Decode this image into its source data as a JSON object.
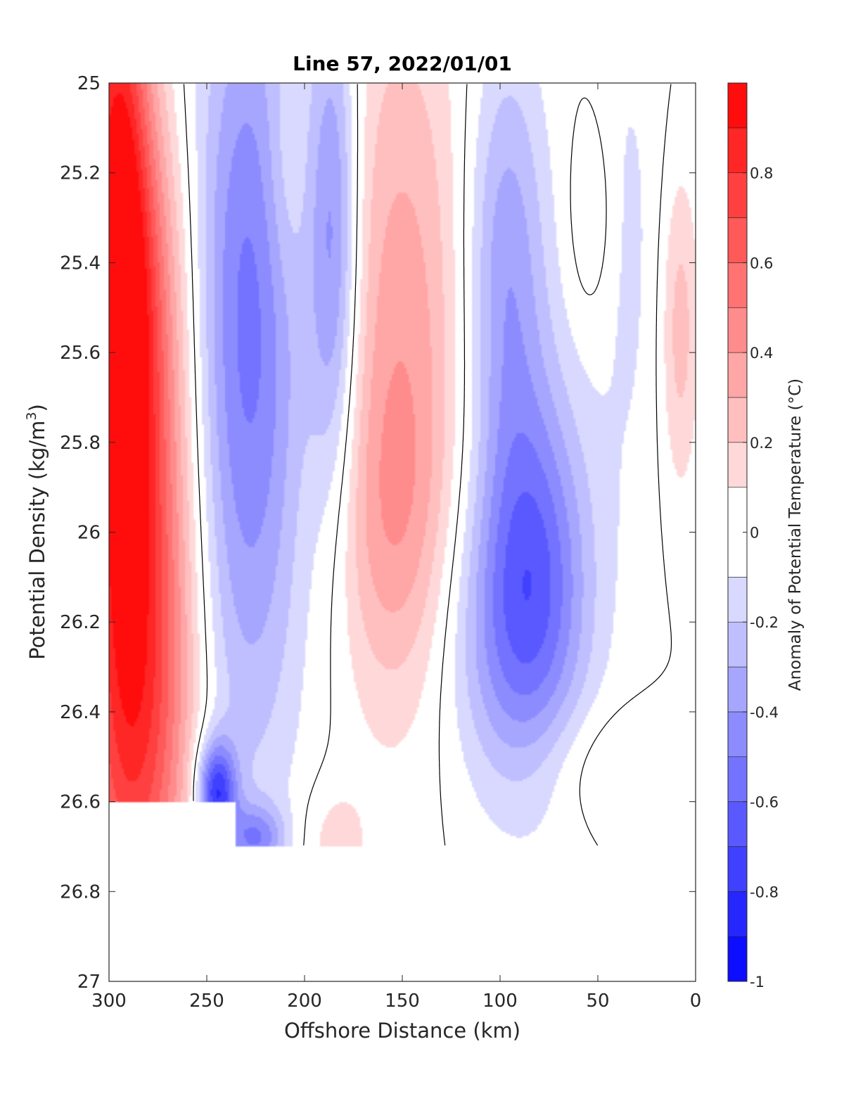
{
  "chart_data": {
    "type": "heatmap",
    "title": "Line 57, 2022/01/01",
    "xlabel": "Offshore Distance (km)",
    "ylabel": "Potential Density (kg/m3)",
    "ylabel_base": "Potential Density (kg/m",
    "ylabel_sup": "3",
    "ylabel_tail": ")",
    "xlim": [
      300,
      0
    ],
    "ylim": [
      25,
      27
    ],
    "x_reversed": true,
    "y_reversed": true,
    "xticks": [
      300,
      250,
      200,
      150,
      100,
      50,
      0
    ],
    "xtick_labels": [
      "300",
      "250",
      "200",
      "150",
      "100",
      "50",
      "0"
    ],
    "yticks": [
      25,
      25.2,
      25.4,
      25.6,
      25.8,
      26,
      26.2,
      26.4,
      26.6,
      26.8,
      27
    ],
    "ytick_labels": [
      "25",
      "25.2",
      "25.4",
      "25.6",
      "25.8",
      "26",
      "26.2",
      "26.4",
      "26.6",
      "26.8",
      "27"
    ],
    "grid": false,
    "zero_contour": true,
    "colorbar": {
      "label": "Anomaly of Potential Temperature (°C)",
      "range": [
        -1,
        1
      ],
      "levels": [
        -1,
        -0.9,
        -0.8,
        -0.7,
        -0.6,
        -0.5,
        -0.4,
        -0.3,
        -0.2,
        -0.1,
        0.1,
        0.2,
        0.3,
        0.4,
        0.5,
        0.6,
        0.7,
        0.8,
        0.9,
        1
      ],
      "ticks": [
        -1,
        -0.8,
        -0.6,
        -0.4,
        -0.2,
        0,
        0.2,
        0.4,
        0.6,
        0.8
      ],
      "tick_labels": [
        "-1",
        "-0.8",
        "-0.6",
        "-0.4",
        "-0.2",
        "0",
        "0.2",
        "0.4",
        "0.6",
        "0.8"
      ],
      "colormap": "blue-white-red",
      "low_color": "#0000ff",
      "mid_color": "#ffffff",
      "high_color": "#ff0000"
    },
    "data_coverage": [
      {
        "x_range": [
          300,
          262
        ],
        "max_density": 26.6
      },
      {
        "x_range": [
          262,
          235
        ],
        "max_density": 26.6
      },
      {
        "x_range": [
          235,
          125
        ],
        "max_density": 26.7
      },
      {
        "x_range": [
          125,
          100
        ],
        "max_density": 26.8
      },
      {
        "x_range": [
          100,
          30
        ],
        "max_density": 26.7
      }
    ],
    "anomaly_features": [
      {
        "center": [
          296,
          25.35
        ],
        "spread": [
          12,
          0.55
        ],
        "value": 0.95
      },
      {
        "center": [
          280,
          25.5
        ],
        "spread": [
          16,
          0.35
        ],
        "value": 0.4
      },
      {
        "center": [
          288,
          26.45
        ],
        "spread": [
          20,
          0.45
        ],
        "value": 0.65
      },
      {
        "center": [
          275,
          26.1
        ],
        "spread": [
          18,
          0.4
        ],
        "value": 0.25
      },
      {
        "center": [
          245,
          26.58
        ],
        "spread": [
          7,
          0.08
        ],
        "value": -0.75
      },
      {
        "center": [
          228,
          25.3
        ],
        "spread": [
          20,
          0.5
        ],
        "value": -0.35
      },
      {
        "center": [
          230,
          25.95
        ],
        "spread": [
          22,
          0.55
        ],
        "value": -0.3
      },
      {
        "center": [
          210,
          25.2
        ],
        "spread": [
          8,
          0.2
        ],
        "value": 0.12
      },
      {
        "center": [
          185,
          25.35
        ],
        "spread": [
          9,
          0.4
        ],
        "value": -0.45
      },
      {
        "center": [
          150,
          25.55
        ],
        "spread": [
          24,
          0.55
        ],
        "value": 0.35
      },
      {
        "center": [
          155,
          26.0
        ],
        "spread": [
          20,
          0.25
        ],
        "value": 0.18
      },
      {
        "center": [
          97,
          25.4
        ],
        "spread": [
          15,
          0.35
        ],
        "value": -0.38
      },
      {
        "center": [
          82,
          26.05
        ],
        "spread": [
          20,
          0.3
        ],
        "value": -0.45
      },
      {
        "center": [
          95,
          26.25
        ],
        "spread": [
          25,
          0.25
        ],
        "value": -0.3
      },
      {
        "center": [
          53,
          25.3
        ],
        "spread": [
          8,
          0.15
        ],
        "value": 0.12
      },
      {
        "center": [
          34,
          25.35
        ],
        "spread": [
          12,
          0.45
        ],
        "value": -0.12
      },
      {
        "center": [
          8,
          25.55
        ],
        "spread": [
          7,
          0.25
        ],
        "value": 0.25
      },
      {
        "center": [
          50,
          26.52
        ],
        "spread": [
          28,
          0.1
        ],
        "value": 0.12
      },
      {
        "center": [
          185,
          26.7
        ],
        "spread": [
          12,
          0.1
        ],
        "value": 0.15
      },
      {
        "center": [
          225,
          26.68
        ],
        "spread": [
          10,
          0.05
        ],
        "value": -0.4
      }
    ]
  }
}
